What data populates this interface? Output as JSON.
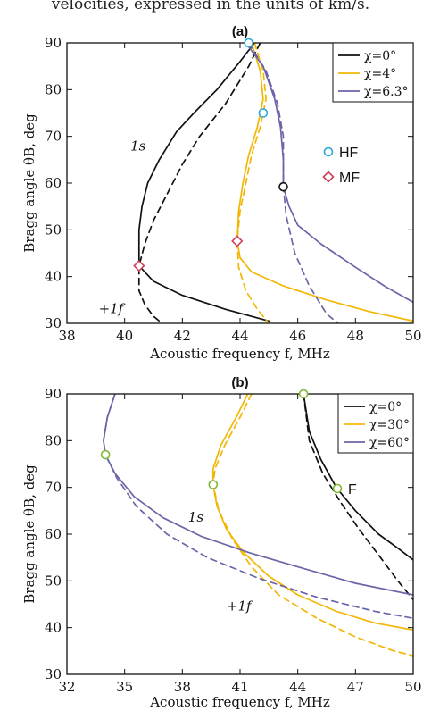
{
  "caption": "velocities, expressed in the units of km/s.",
  "chart_data": [
    {
      "type": "line",
      "panel_label": "(a)",
      "xlabel": "Acoustic frequency f, MHz",
      "ylabel": "Bragg angle θB, deg",
      "xlim": [
        38,
        50
      ],
      "ylim": [
        30,
        90
      ],
      "xticks": [
        38,
        40,
        42,
        44,
        46,
        48,
        50
      ],
      "yticks": [
        30,
        40,
        50,
        60,
        70,
        80,
        90
      ],
      "legend_position": "top-right",
      "colors": {
        "black": "#111111",
        "yellow": "#f2b705",
        "purple": "#6a65a8",
        "hf": "#2ba8d8",
        "mf": "#d0405a"
      },
      "series": [
        {
          "name": "χ=0°",
          "color": "#111111",
          "style": "solid",
          "points": [
            [
              44.5,
              90
            ],
            [
              44.0,
              86
            ],
            [
              43.2,
              80
            ],
            [
              42.4,
              75
            ],
            [
              41.8,
              71
            ],
            [
              41.2,
              65
            ],
            [
              40.8,
              60
            ],
            [
              40.6,
              55
            ],
            [
              40.5,
              50
            ],
            [
              40.5,
              46
            ],
            [
              40.5,
              42.3
            ],
            [
              41.0,
              39
            ],
            [
              42.0,
              36
            ],
            [
              43.5,
              33
            ],
            [
              45.0,
              30.5
            ]
          ]
        },
        {
          "name": "χ=0°",
          "color": "#111111",
          "style": "dashed",
          "points": [
            [
              44.7,
              90
            ],
            [
              44.3,
              85
            ],
            [
              43.5,
              77
            ],
            [
              42.6,
              70
            ],
            [
              42.0,
              64
            ],
            [
              41.5,
              58
            ],
            [
              41.0,
              52
            ],
            [
              40.7,
              47
            ],
            [
              40.5,
              42.3
            ],
            [
              40.5,
              37
            ],
            [
              40.7,
              34
            ],
            [
              41.0,
              31.5
            ],
            [
              41.3,
              30
            ]
          ]
        },
        {
          "name": "χ=4°",
          "color": "#f2b705",
          "style": "solid",
          "points": [
            [
              44.4,
              90
            ],
            [
              44.7,
              84
            ],
            [
              44.8,
              78
            ],
            [
              44.6,
              72
            ],
            [
              44.3,
              66
            ],
            [
              44.1,
              60
            ],
            [
              43.95,
              54
            ],
            [
              43.9,
              47.6
            ],
            [
              44.0,
              44
            ],
            [
              44.4,
              41
            ],
            [
              45.5,
              38
            ],
            [
              47.0,
              35
            ],
            [
              48.5,
              32.5
            ],
            [
              50.0,
              30.5
            ]
          ]
        },
        {
          "name": "χ=4°",
          "color": "#f2b705",
          "style": "dashed",
          "points": [
            [
              44.5,
              90
            ],
            [
              44.8,
              84
            ],
            [
              44.9,
              78
            ],
            [
              44.7,
              72
            ],
            [
              44.4,
              66
            ],
            [
              44.2,
              60
            ],
            [
              44.0,
              54
            ],
            [
              43.9,
              47.6
            ],
            [
              43.95,
              42
            ],
            [
              44.2,
              37
            ],
            [
              44.6,
              33
            ],
            [
              45.0,
              30
            ]
          ]
        },
        {
          "name": "χ=6.3°",
          "color": "#6a65a8",
          "style": "solid",
          "points": [
            [
              44.2,
              90
            ],
            [
              44.8,
              85
            ],
            [
              45.2,
              78
            ],
            [
              45.4,
              72
            ],
            [
              45.5,
              65
            ],
            [
              45.5,
              59.2
            ],
            [
              45.7,
              55
            ],
            [
              46.0,
              51
            ],
            [
              46.8,
              47
            ],
            [
              48.0,
              42
            ],
            [
              49.0,
              38
            ],
            [
              50.0,
              34.5
            ]
          ]
        },
        {
          "name": "χ=6.3°",
          "color": "#6a65a8",
          "style": "dashed",
          "points": [
            [
              44.3,
              90
            ],
            [
              44.9,
              84
            ],
            [
              45.3,
              77
            ],
            [
              45.5,
              70
            ],
            [
              45.5,
              63
            ],
            [
              45.5,
              59.2
            ],
            [
              45.6,
              53
            ],
            [
              45.9,
              45
            ],
            [
              46.4,
              38
            ],
            [
              47.0,
              32
            ],
            [
              47.4,
              30
            ]
          ]
        }
      ],
      "markers": [
        {
          "type": "HF",
          "shape": "circle",
          "color": "#2ba8d8",
          "x": 44.3,
          "y": 90
        },
        {
          "type": "HF",
          "shape": "circle",
          "color": "#2ba8d8",
          "x": 44.8,
          "y": 75
        },
        {
          "type": "HF",
          "shape": "circle",
          "color": "#111111",
          "x": 45.5,
          "y": 59.2
        },
        {
          "type": "MF",
          "shape": "diamond",
          "color": "#d0405a",
          "x": 40.5,
          "y": 42.3
        },
        {
          "type": "MF",
          "shape": "diamond",
          "color": "#d0405a",
          "x": 43.9,
          "y": 47.6
        }
      ],
      "marker_legend": [
        {
          "label": "HF",
          "shape": "circle",
          "color": "#2ba8d8"
        },
        {
          "label": "MF",
          "shape": "diamond",
          "color": "#d0405a"
        }
      ],
      "annotations": [
        {
          "text": "1s",
          "x": 40.2,
          "y": 67
        },
        {
          "text": "+1f",
          "x": 39.1,
          "y": 32.2
        }
      ]
    },
    {
      "type": "line",
      "panel_label": "(b)",
      "xlabel": "Acoustic frequency f, MHz",
      "ylabel": "Bragg angle θB, deg",
      "xlim": [
        32,
        50
      ],
      "ylim": [
        30,
        90
      ],
      "xticks": [
        32,
        35,
        38,
        41,
        44,
        47,
        50
      ],
      "yticks": [
        30,
        40,
        50,
        60,
        70,
        80,
        90
      ],
      "legend_position": "top-right",
      "colors": {
        "black": "#111111",
        "yellow": "#f2b705",
        "purple": "#6a65a8",
        "f": "#7fb832"
      },
      "series": [
        {
          "name": "χ=0°",
          "color": "#111111",
          "style": "solid",
          "points": [
            [
              44.3,
              90
            ],
            [
              44.6,
              82
            ],
            [
              45.2,
              76
            ],
            [
              46.0,
              70
            ],
            [
              47.0,
              65
            ],
            [
              48.2,
              60
            ],
            [
              49.2,
              57
            ],
            [
              50.0,
              54.5
            ]
          ]
        },
        {
          "name": "χ=0°",
          "color": "#111111",
          "style": "dashed",
          "points": [
            [
              44.3,
              90
            ],
            [
              44.6,
              80
            ],
            [
              45.3,
              73
            ],
            [
              46.2,
              67
            ],
            [
              47.2,
              61
            ],
            [
              48.3,
              55
            ],
            [
              49.2,
              50
            ],
            [
              50.0,
              46
            ]
          ]
        },
        {
          "name": "χ=30°",
          "color": "#f2b705",
          "style": "solid",
          "points": [
            [
              41.4,
              90
            ],
            [
              40.8,
              85
            ],
            [
              40.0,
              79
            ],
            [
              39.6,
              74
            ],
            [
              39.6,
              70.6
            ],
            [
              39.8,
              66
            ],
            [
              40.3,
              61
            ],
            [
              41.2,
              56
            ],
            [
              42.5,
              51
            ],
            [
              44.0,
              47
            ],
            [
              46.0,
              43.5
            ],
            [
              48.0,
              41
            ],
            [
              50.0,
              39.5
            ]
          ]
        },
        {
          "name": "χ=30°",
          "color": "#f2b705",
          "style": "dashed",
          "points": [
            [
              41.6,
              90
            ],
            [
              41.0,
              85
            ],
            [
              40.2,
              79
            ],
            [
              39.7,
              74
            ],
            [
              39.6,
              70.6
            ],
            [
              39.9,
              65
            ],
            [
              40.6,
              59
            ],
            [
              41.6,
              53
            ],
            [
              43.0,
              47
            ],
            [
              45.0,
              42
            ],
            [
              47.0,
              38
            ],
            [
              49.0,
              35
            ],
            [
              50.0,
              34
            ]
          ]
        },
        {
          "name": "χ=60°",
          "color": "#6a65a8",
          "style": "solid",
          "points": [
            [
              34.5,
              90
            ],
            [
              34.1,
              85
            ],
            [
              33.9,
              80
            ],
            [
              34.0,
              77
            ],
            [
              34.5,
              73
            ],
            [
              35.5,
              68
            ],
            [
              37.0,
              63.5
            ],
            [
              39.0,
              59.5
            ],
            [
              41.5,
              56
            ],
            [
              44.0,
              53
            ],
            [
              47.0,
              49.5
            ],
            [
              50.0,
              47
            ]
          ]
        },
        {
          "name": "χ=60°",
          "color": "#6a65a8",
          "style": "dashed",
          "points": [
            [
              34.5,
              90
            ],
            [
              34.1,
              85
            ],
            [
              33.9,
              80
            ],
            [
              34.0,
              77
            ],
            [
              34.6,
              72
            ],
            [
              35.6,
              66
            ],
            [
              37.2,
              60
            ],
            [
              39.3,
              55
            ],
            [
              42.0,
              50.5
            ],
            [
              45.0,
              46.5
            ],
            [
              48.0,
              43.5
            ],
            [
              50.0,
              42
            ]
          ]
        }
      ],
      "markers": [
        {
          "type": "F",
          "shape": "circle",
          "color": "#7fb832",
          "x": 44.3,
          "y": 90
        },
        {
          "type": "F",
          "shape": "circle",
          "color": "#7fb832",
          "x": 34.0,
          "y": 77
        },
        {
          "type": "F",
          "shape": "circle",
          "color": "#7fb832",
          "x": 39.6,
          "y": 70.6
        }
      ],
      "marker_legend": [
        {
          "label": "F",
          "shape": "circle",
          "color": "#7fb832"
        }
      ],
      "annotations": [
        {
          "text": "1s",
          "x": 38.3,
          "y": 62.7
        },
        {
          "text": "+1f",
          "x": 40.3,
          "y": 43.7
        }
      ]
    }
  ]
}
